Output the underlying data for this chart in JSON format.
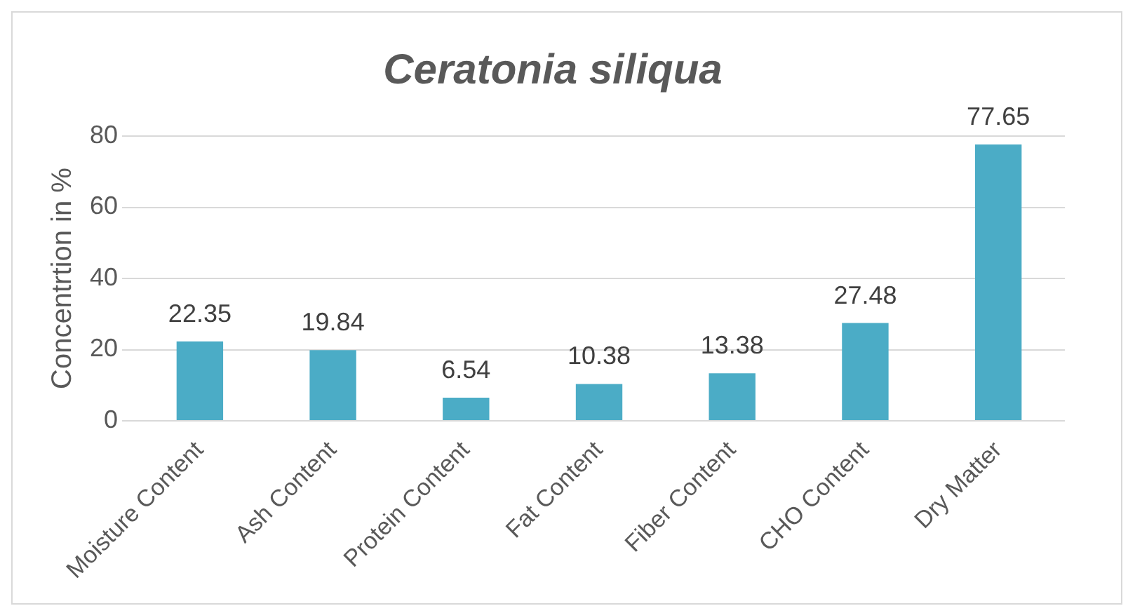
{
  "chart_data": {
    "type": "bar",
    "title": "Ceratonia siliqua",
    "ylabel": "Concentrtion in %",
    "categories": [
      "Moisture Content",
      "Ash Content",
      "Protein Content",
      "Fat Content",
      "Fiber Content",
      "CHO Content",
      "Dry Matter"
    ],
    "values": [
      22.35,
      19.84,
      6.54,
      10.38,
      13.38,
      27.48,
      77.65
    ],
    "color": "#4bacc6",
    "ylim": [
      0,
      80
    ],
    "yticks": [
      0,
      20,
      40,
      60,
      80
    ],
    "grid": "y",
    "data_labels": true
  }
}
